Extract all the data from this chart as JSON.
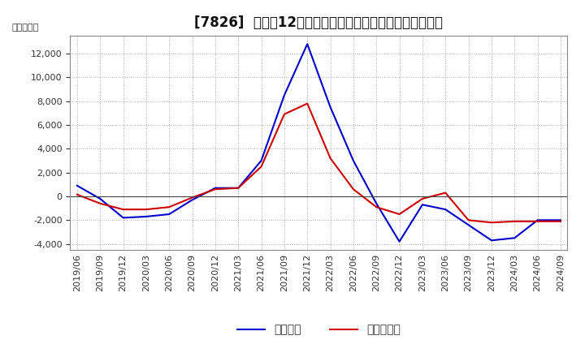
{
  "title": "[7826]  利益だ12か月移動合計の対前年同期増減額の推移",
  "ylabel": "（百万円）",
  "background_color": "#ffffff",
  "plot_bg_color": "#ffffff",
  "grid_color": "#aaaaaa",
  "ylim": [
    -4500,
    13500
  ],
  "yticks": [
    -4000,
    -2000,
    0,
    2000,
    4000,
    6000,
    8000,
    10000,
    12000
  ],
  "x_labels": [
    "2019/06",
    "2019/09",
    "2019/12",
    "2020/03",
    "2020/06",
    "2020/09",
    "2020/12",
    "2021/03",
    "2021/06",
    "2021/09",
    "2021/12",
    "2022/03",
    "2022/06",
    "2022/09",
    "2022/12",
    "2023/03",
    "2023/06",
    "2023/09",
    "2023/12",
    "2024/03",
    "2024/06",
    "2024/09"
  ],
  "keijo_rieki": [
    900,
    -200,
    -1800,
    -1700,
    -1500,
    -300,
    700,
    700,
    3000,
    8500,
    12800,
    7500,
    3000,
    -600,
    -3800,
    -700,
    -1100,
    -2400,
    -3700,
    -3500,
    -2000,
    -2000
  ],
  "touki_jurieki": [
    150,
    -600,
    -1100,
    -1100,
    -900,
    -100,
    600,
    700,
    2500,
    6900,
    7800,
    3200,
    600,
    -900,
    -1500,
    -200,
    300,
    -2000,
    -2200,
    -2100,
    -2100,
    -2100
  ],
  "keijo_color": "#0000cc",
  "touki_color": "#cc0000",
  "legend_keijo": "経常利益",
  "legend_touki": "当期純利益",
  "title_fontsize": 12,
  "axis_fontsize": 8,
  "ylabel_fontsize": 8,
  "legend_fontsize": 10
}
